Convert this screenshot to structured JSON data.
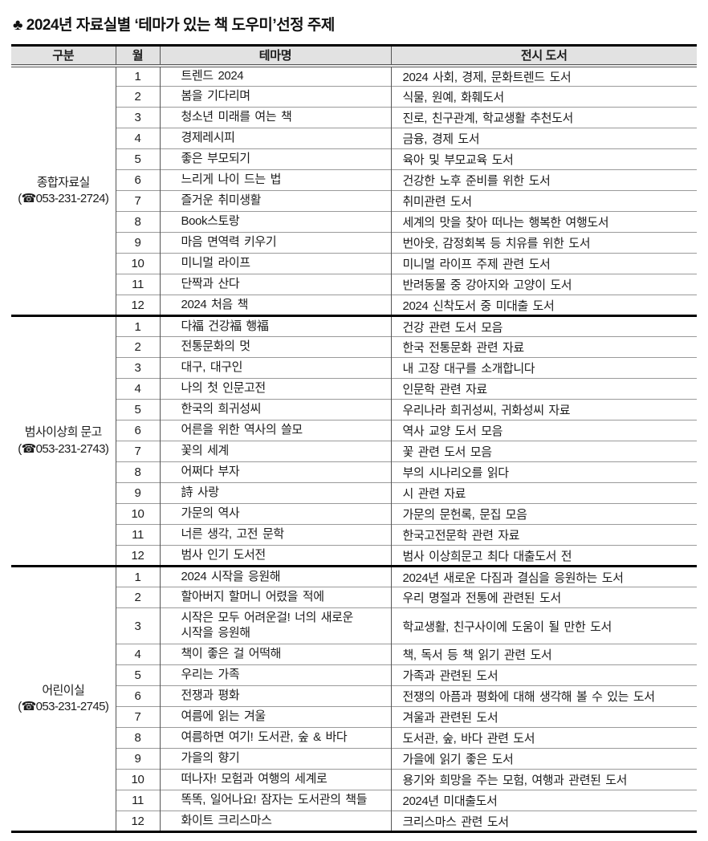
{
  "title": "♣ 2024년 자료실별 ‘테마가 있는 책 도우미’선정 주제",
  "colors": {
    "header_bg": "#e2e2e2",
    "thick_border": "#000000",
    "row_line": "#9a9a9a",
    "text": "#1c1c1c"
  },
  "table": {
    "headers": [
      "구분",
      "월",
      "테마명",
      "전시 도서"
    ],
    "sections": [
      {
        "room": "종합자료실",
        "phone": "(☎053-231-2724)",
        "rows": [
          {
            "month": "1",
            "theme": "트렌드 2024",
            "books": "2024 사회, 경제, 문화트렌드 도서"
          },
          {
            "month": "2",
            "theme": "봄을 기다리며",
            "books": "식물, 원예, 화훼도서"
          },
          {
            "month": "3",
            "theme": "청소년 미래를 여는 책",
            "books": "진로, 친구관계, 학교생활 추천도서"
          },
          {
            "month": "4",
            "theme": "경제레시피",
            "books": "금융, 경제 도서"
          },
          {
            "month": "5",
            "theme": "좋은 부모되기",
            "books": "육아 및 부모교육 도서"
          },
          {
            "month": "6",
            "theme": "느리게 나이 드는 법",
            "books": "건강한 노후 준비를 위한 도서"
          },
          {
            "month": "7",
            "theme": "즐거운 취미생활",
            "books": "취미관련 도서"
          },
          {
            "month": "8",
            "theme": "Book스토랑",
            "books": "세계의 맛을 찾아 떠나는 행복한 여행도서"
          },
          {
            "month": "9",
            "theme": "마음 면역력 키우기",
            "books": "번아웃, 감정회복 등 치유를 위한 도서"
          },
          {
            "month": "10",
            "theme": "미니멀 라이프",
            "books": "미니멀 라이프 주제 관련 도서"
          },
          {
            "month": "11",
            "theme": "단짝과 산다",
            "books": "반려동물 중 강아지와 고양이 도서"
          },
          {
            "month": "12",
            "theme": "2024 처음 책",
            "books": "2024 신착도서 중 미대출 도서"
          }
        ]
      },
      {
        "room": "범사이상희 문고",
        "phone": "(☎053-231-2743)",
        "rows": [
          {
            "month": "1",
            "theme": "다福 건강福 행福",
            "books": "건강 관련 도서 모음"
          },
          {
            "month": "2",
            "theme": "전통문화의 멋",
            "books": "한국 전통문화 관련 자료"
          },
          {
            "month": "3",
            "theme": "대구, 대구인",
            "books": "내 고장 대구를 소개합니다"
          },
          {
            "month": "4",
            "theme": "나의 첫 인문고전",
            "books": "인문학 관련 자료"
          },
          {
            "month": "5",
            "theme": "한국의 희귀성씨",
            "books": "우리나라 희귀성씨, 귀화성씨 자료"
          },
          {
            "month": "6",
            "theme": "어른을 위한 역사의 쓸모",
            "books": "역사 교양 도서 모음"
          },
          {
            "month": "7",
            "theme": "꽃의 세계",
            "books": "꽃 관련 도서 모음"
          },
          {
            "month": "8",
            "theme": "어쩌다 부자",
            "books": "부의 시나리오를 읽다"
          },
          {
            "month": "9",
            "theme": "詩 사랑",
            "books": "시 관련 자료"
          },
          {
            "month": "10",
            "theme": "가문의 역사",
            "books": "가문의 문헌록, 문집 모음"
          },
          {
            "month": "11",
            "theme": "너른 생각, 고전 문학",
            "books": "한국고전문학 관련 자료"
          },
          {
            "month": "12",
            "theme": "범사 인기 도서전",
            "books": "범사 이상희문고 최다 대출도서 전"
          }
        ]
      },
      {
        "room": "어린이실",
        "phone": "(☎053-231-2745)",
        "rows": [
          {
            "month": "1",
            "theme": "2024 시작을 응원해",
            "books": "2024년 새로운 다짐과 결심을 응원하는 도서"
          },
          {
            "month": "2",
            "theme": "할아버지 할머니 어렸을 적에",
            "books": "우리 명절과 전통에 관련된 도서"
          },
          {
            "month": "3",
            "theme": "시작은 모두 어려운걸! 너의 새로운\n시작을 응원해",
            "books": "학교생활, 친구사이에 도움이 될 만한 도서"
          },
          {
            "month": "4",
            "theme": "책이 좋은 걸 어떡해",
            "books": "책, 독서 등 책 읽기 관련 도서"
          },
          {
            "month": "5",
            "theme": "우리는 가족",
            "books": "가족과 관련된 도서"
          },
          {
            "month": "6",
            "theme": "전쟁과 평화",
            "books": "전쟁의 아픔과 평화에 대해 생각해 볼 수 있는 도서"
          },
          {
            "month": "7",
            "theme": "여름에 읽는 겨울",
            "books": "겨울과 관련된 도서"
          },
          {
            "month": "8",
            "theme": "여름하면 여기! 도서관, 숲 & 바다",
            "books": "도서관, 숲, 바다 관련 도서"
          },
          {
            "month": "9",
            "theme": "가을의 향기",
            "books": "가을에 읽기 좋은 도서"
          },
          {
            "month": "10",
            "theme": "떠나자! 모험과 여행의 세계로",
            "books": "용기와 희망을 주는 모험, 여행과 관련된 도서"
          },
          {
            "month": "11",
            "theme": "똑똑, 일어나요! 잠자는 도서관의 책들",
            "books": "2024년 미대출도서"
          },
          {
            "month": "12",
            "theme": "화이트 크리스마스",
            "books": "크리스마스 관련 도서"
          }
        ]
      }
    ]
  }
}
